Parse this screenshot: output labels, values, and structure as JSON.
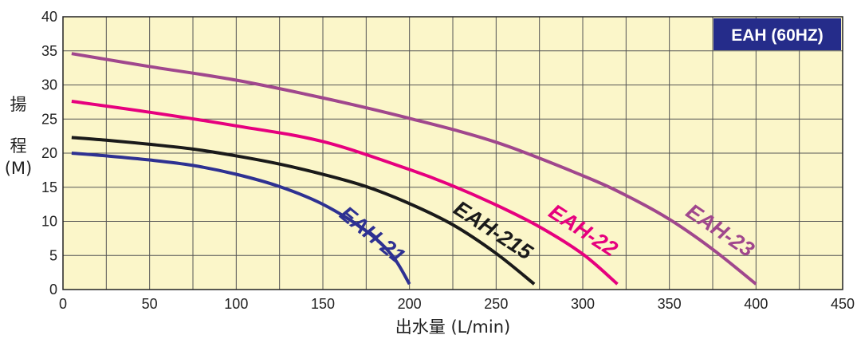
{
  "chart_data": {
    "type": "line",
    "title": "EAH (60HZ)",
    "xlabel": "出水量 (L/min)",
    "ylabel_lines": [
      "揚",
      "程",
      "(M)"
    ],
    "xlim": [
      0,
      450
    ],
    "ylim": [
      0,
      40
    ],
    "x_ticks": [
      0,
      50,
      100,
      150,
      200,
      250,
      300,
      350,
      400,
      450
    ],
    "y_ticks": [
      0,
      5,
      10,
      15,
      20,
      25,
      30,
      35,
      40
    ],
    "grid": true,
    "background_color": "#fbf6c9",
    "badge_color": "#252c8a",
    "series": [
      {
        "name": "EAH-21",
        "color": "#2e3192",
        "points": [
          [
            5,
            20.0
          ],
          [
            25,
            19.6
          ],
          [
            50,
            19.0
          ],
          [
            75,
            18.2
          ],
          [
            100,
            16.9
          ],
          [
            125,
            15.1
          ],
          [
            150,
            12.5
          ],
          [
            175,
            8.6
          ],
          [
            190,
            5.0
          ],
          [
            200,
            0.8
          ]
        ]
      },
      {
        "name": "EAH-215",
        "color": "#1a1a1a",
        "points": [
          [
            5,
            22.3
          ],
          [
            25,
            21.9
          ],
          [
            50,
            21.3
          ],
          [
            75,
            20.6
          ],
          [
            100,
            19.6
          ],
          [
            125,
            18.4
          ],
          [
            150,
            16.9
          ],
          [
            175,
            15.1
          ],
          [
            200,
            12.6
          ],
          [
            225,
            9.5
          ],
          [
            250,
            5.3
          ],
          [
            272,
            0.8
          ]
        ]
      },
      {
        "name": "EAH-22",
        "color": "#e6007e",
        "points": [
          [
            5,
            27.6
          ],
          [
            50,
            26.0
          ],
          [
            100,
            24.0
          ],
          [
            150,
            21.7
          ],
          [
            200,
            17.6
          ],
          [
            225,
            15.2
          ],
          [
            250,
            12.4
          ],
          [
            275,
            9.2
          ],
          [
            300,
            5.2
          ],
          [
            320,
            0.8
          ]
        ]
      },
      {
        "name": "EAH-23",
        "color": "#a0478d",
        "points": [
          [
            5,
            34.6
          ],
          [
            50,
            32.7
          ],
          [
            100,
            30.7
          ],
          [
            150,
            28.1
          ],
          [
            200,
            25.1
          ],
          [
            250,
            21.6
          ],
          [
            300,
            16.7
          ],
          [
            325,
            13.8
          ],
          [
            350,
            10.3
          ],
          [
            375,
            5.9
          ],
          [
            400,
            0.8
          ]
        ]
      }
    ],
    "series_labels": [
      {
        "series": "EAH-21",
        "text": "EAH-21",
        "x": 176,
        "y": 7.2,
        "angle": 39
      },
      {
        "series": "EAH-215",
        "text": "EAH-215",
        "x": 246,
        "y": 7.8,
        "angle": 33
      },
      {
        "series": "EAH-22",
        "text": "EAH-22",
        "x": 298,
        "y": 7.8,
        "angle": 33
      },
      {
        "series": "EAH-23",
        "text": "EAH-23",
        "x": 377,
        "y": 7.8,
        "angle": 34
      }
    ]
  }
}
